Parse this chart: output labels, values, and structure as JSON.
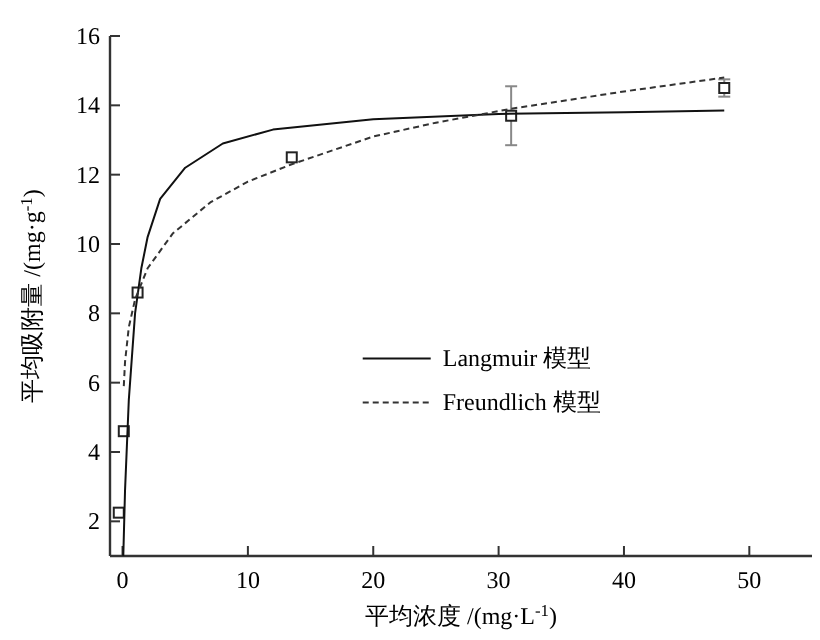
{
  "chart_data": {
    "type": "scatter",
    "xlabel": "平均浓度 /(mg·L$^{-1}$)",
    "ylabel": "平均吸附量 /(mg·g$^{-1}$)",
    "xlim": [
      -1,
      55
    ],
    "ylim": [
      1,
      16
    ],
    "xticks": [
      0,
      10,
      20,
      30,
      40,
      50
    ],
    "yticks": [
      2,
      4,
      6,
      8,
      10,
      12,
      14,
      16
    ],
    "grid": false,
    "legend": "center",
    "series": [
      {
        "marker": "square",
        "color": "#222222",
        "x": [
          -0.3,
          0.1,
          1.2,
          13.5,
          31,
          48
        ],
        "values": [
          2.25,
          4.6,
          8.6,
          12.5,
          13.7,
          14.5
        ],
        "errors": [
          null,
          null,
          null,
          null,
          0.85,
          0.25
        ]
      },
      {
        "type": "line",
        "name": "Langmuir 模型",
        "color": "#111111",
        "line_style": "solid",
        "x": [
          0.06,
          0.2,
          0.5,
          1,
          1.5,
          2,
          3,
          5,
          8,
          12,
          20,
          30,
          40,
          48
        ],
        "values": [
          1.0,
          2.9,
          5.5,
          8.0,
          9.3,
          10.2,
          11.3,
          12.2,
          12.9,
          13.3,
          13.6,
          13.75,
          13.8,
          13.85
        ]
      },
      {
        "type": "line",
        "name": "Freundlich 模型",
        "color": "#333333",
        "line_style": "dashed",
        "x": [
          0.1,
          0.2,
          0.5,
          1,
          2,
          4,
          7,
          10,
          13.5,
          20,
          25,
          31,
          40,
          48
        ],
        "values": [
          5.9,
          6.6,
          7.6,
          8.4,
          9.3,
          10.3,
          11.2,
          11.8,
          12.3,
          13.1,
          13.5,
          13.9,
          14.4,
          14.8
        ]
      }
    ]
  }
}
